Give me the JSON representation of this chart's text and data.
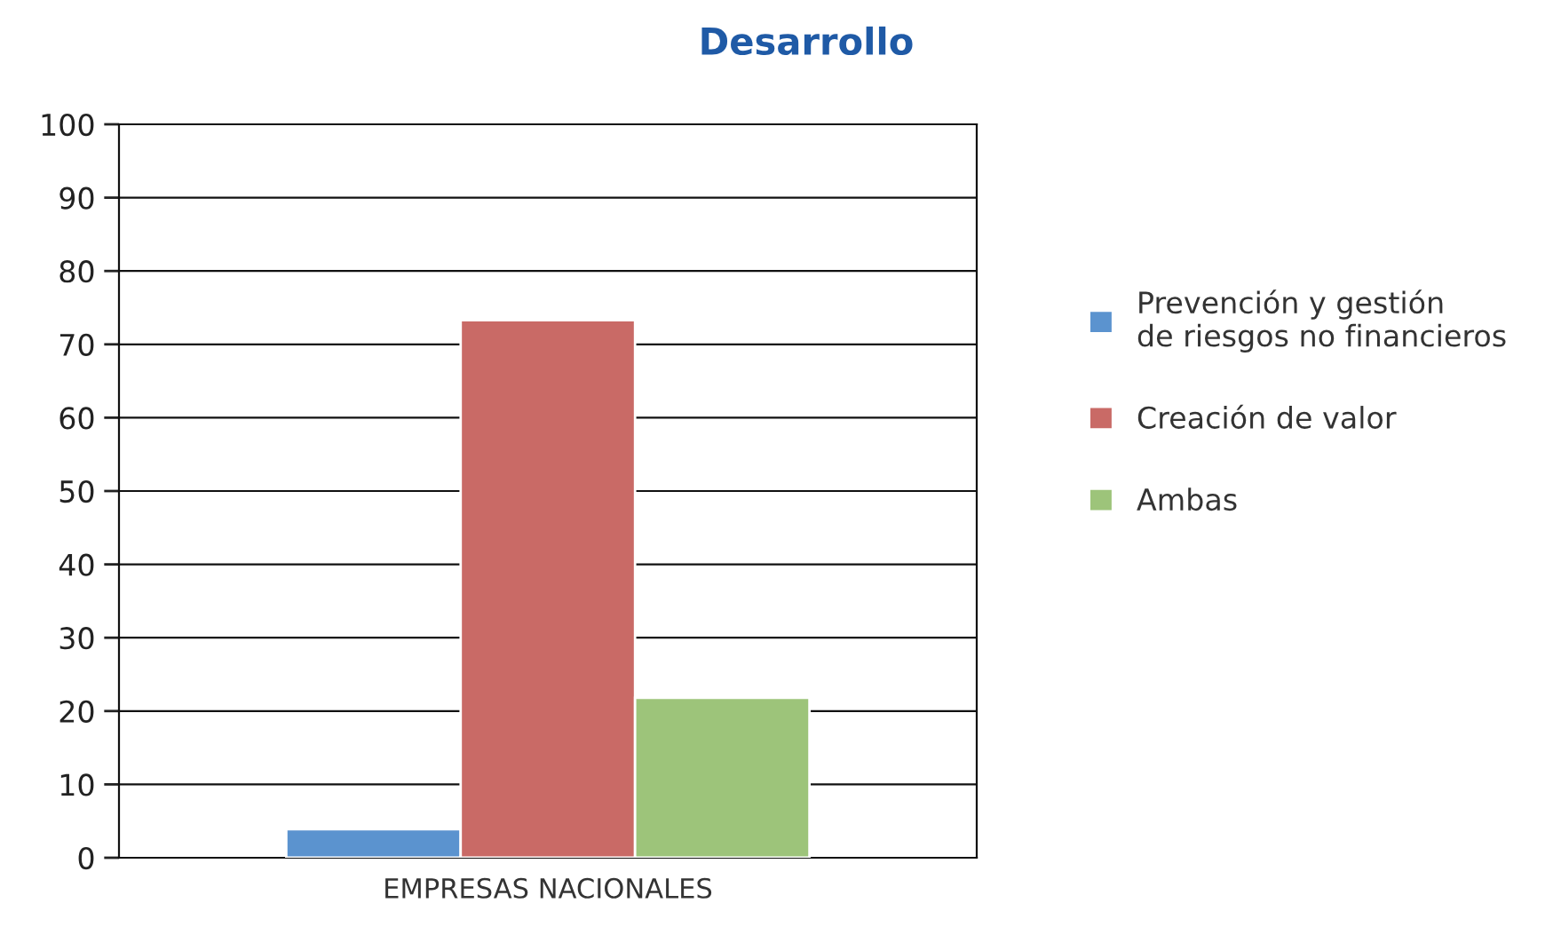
{
  "chart_data": {
    "type": "bar",
    "title": "Desarrollo",
    "categories": [
      "EMPRESAS NACIONALES"
    ],
    "series": [
      {
        "name": "Prevención y gestión\nde riesgos no financieros",
        "color": "#5b93cf",
        "values": [
          3.9
        ]
      },
      {
        "name": "Creación de valor",
        "color": "#c96a66",
        "values": [
          73.3
        ]
      },
      {
        "name": "Ambas",
        "color": "#9dc47a",
        "values": [
          21.8
        ]
      }
    ],
    "ylim": [
      0,
      100
    ],
    "yticks": [
      0,
      10,
      20,
      30,
      40,
      50,
      60,
      70,
      80,
      90,
      100
    ],
    "grid": "y",
    "legend": "right"
  }
}
